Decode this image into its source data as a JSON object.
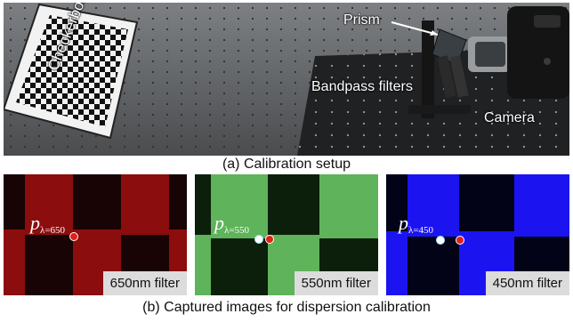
{
  "figure": {
    "setup_labels": {
      "checkerboard": "Checkerboard",
      "prism": "Prism",
      "bandpass": "Bandpass filters",
      "camera": "Camera"
    },
    "caption_a": "(a) Calibration setup",
    "caption_b": "(b) Captured images for dispersion calibration",
    "tiles": [
      {
        "point_symbol": "p",
        "point_subscript": "λ=650",
        "filter_label": "650nm filter",
        "color": "#8b0d0d"
      },
      {
        "point_symbol": "p",
        "point_subscript": "λ=550",
        "filter_label": "550nm filter",
        "color": "#5fb35a"
      },
      {
        "point_symbol": "p",
        "point_subscript": "λ=450",
        "filter_label": "450nm filter",
        "color": "#1b14f0"
      }
    ]
  }
}
